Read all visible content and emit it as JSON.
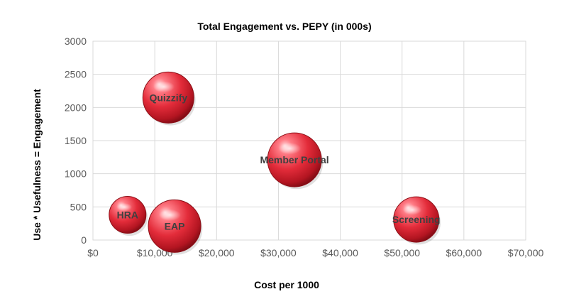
{
  "chart_data": {
    "type": "bubble",
    "title": "Total Engagement vs. PEPY (in 000s)",
    "xlabel": "Cost per 1000",
    "ylabel": "Use * Usefulness = Engagement",
    "xlim": [
      0,
      70000
    ],
    "ylim": [
      0,
      3000
    ],
    "x_ticks": [
      0,
      10000,
      20000,
      30000,
      40000,
      50000,
      60000,
      70000
    ],
    "x_tick_labels": [
      "$0",
      "$10,000",
      "$20,000",
      "$30,000",
      "$40,000",
      "$50,000",
      "$60,000",
      "$70,000"
    ],
    "y_ticks": [
      0,
      500,
      1000,
      1500,
      2000,
      2500,
      3000
    ],
    "y_tick_labels": [
      "0",
      "500",
      "1000",
      "1500",
      "2000",
      "2500",
      "3000"
    ],
    "grid": true,
    "legend": "none",
    "bubble_color": "#e0303c",
    "points": [
      {
        "label": "Quizzify",
        "x": 12200,
        "y": 2150,
        "size": 36
      },
      {
        "label": "Member Portal",
        "x": 32600,
        "y": 1210,
        "size": 38
      },
      {
        "label": "HRA",
        "x": 5600,
        "y": 380,
        "size": 26
      },
      {
        "label": "EAP",
        "x": 13200,
        "y": 210,
        "size": 37
      },
      {
        "label": "Screening",
        "x": 52300,
        "y": 310,
        "size": 32
      }
    ]
  }
}
